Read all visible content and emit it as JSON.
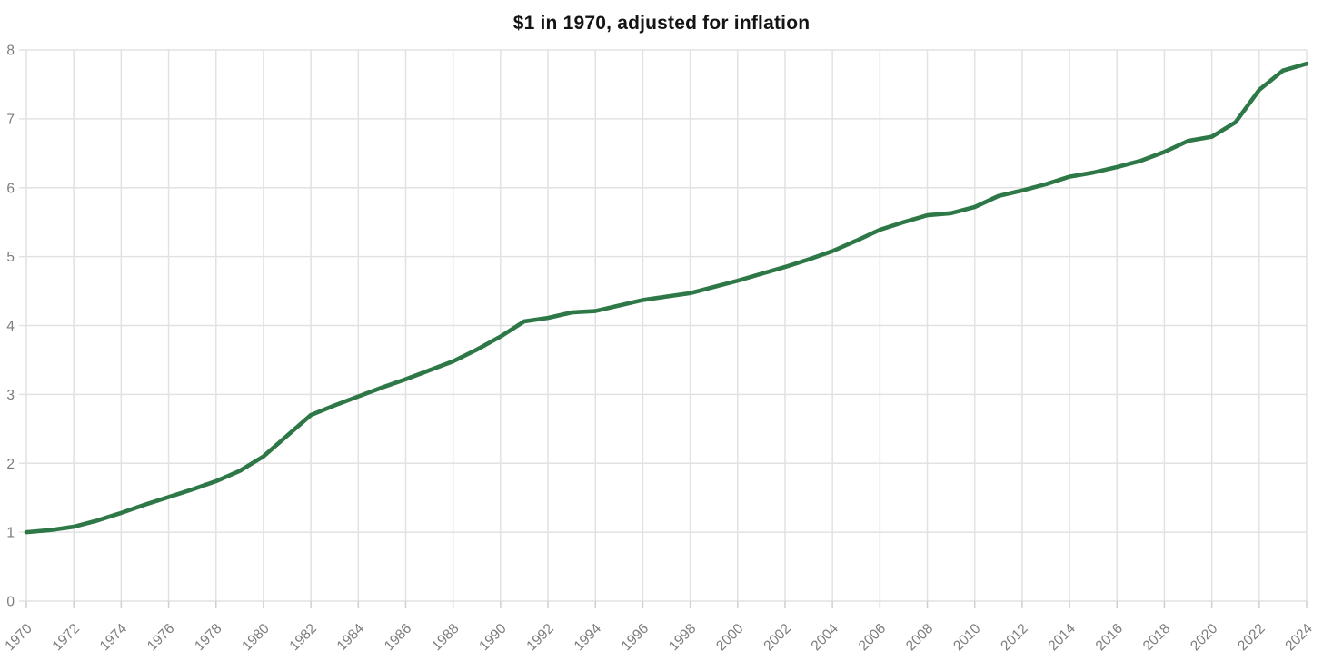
{
  "header": {
    "title": "$1 in 1970, adjusted for inflation"
  },
  "chart_data": {
    "type": "line",
    "title": "$1 in 1970, adjusted for inflation",
    "xlabel": "",
    "ylabel": "",
    "x": [
      1970,
      1971,
      1972,
      1973,
      1974,
      1975,
      1976,
      1977,
      1978,
      1979,
      1980,
      1981,
      1982,
      1983,
      1984,
      1985,
      1986,
      1987,
      1988,
      1989,
      1990,
      1991,
      1992,
      1993,
      1994,
      1995,
      1996,
      1997,
      1998,
      1999,
      2000,
      2001,
      2002,
      2003,
      2004,
      2005,
      2006,
      2007,
      2008,
      2009,
      2010,
      2011,
      2012,
      2013,
      2014,
      2015,
      2016,
      2017,
      2018,
      2019,
      2020,
      2021,
      2022,
      2023,
      2024
    ],
    "values": [
      1.0,
      1.03,
      1.08,
      1.17,
      1.28,
      1.4,
      1.51,
      1.62,
      1.74,
      1.89,
      2.1,
      2.4,
      2.7,
      2.84,
      2.97,
      3.1,
      3.22,
      3.35,
      3.48,
      3.65,
      3.84,
      4.06,
      4.11,
      4.19,
      4.21,
      4.29,
      4.37,
      4.42,
      4.47,
      4.56,
      4.65,
      4.75,
      4.85,
      4.96,
      5.08,
      5.23,
      5.39,
      5.5,
      5.6,
      5.63,
      5.72,
      5.88,
      5.96,
      6.05,
      6.16,
      6.22,
      6.3,
      6.39,
      6.52,
      6.68,
      6.74,
      6.95,
      7.42,
      7.7,
      7.8
    ],
    "xlim": [
      1970,
      2024
    ],
    "ylim": [
      0,
      8
    ],
    "x_tick_step": 2,
    "y_ticks": [
      0,
      1,
      2,
      3,
      4,
      5,
      6,
      7,
      8
    ],
    "grid": true,
    "legend": false,
    "style": {
      "line_color": "#2d7846",
      "line_width": 4.6,
      "grid_color": "#e2e2e2",
      "tick_color": "#cfcfcf",
      "label_color": "#7c7c7c",
      "title_color": "#141414",
      "background": "#ffffff",
      "tick_label_size": 15.5
    }
  }
}
